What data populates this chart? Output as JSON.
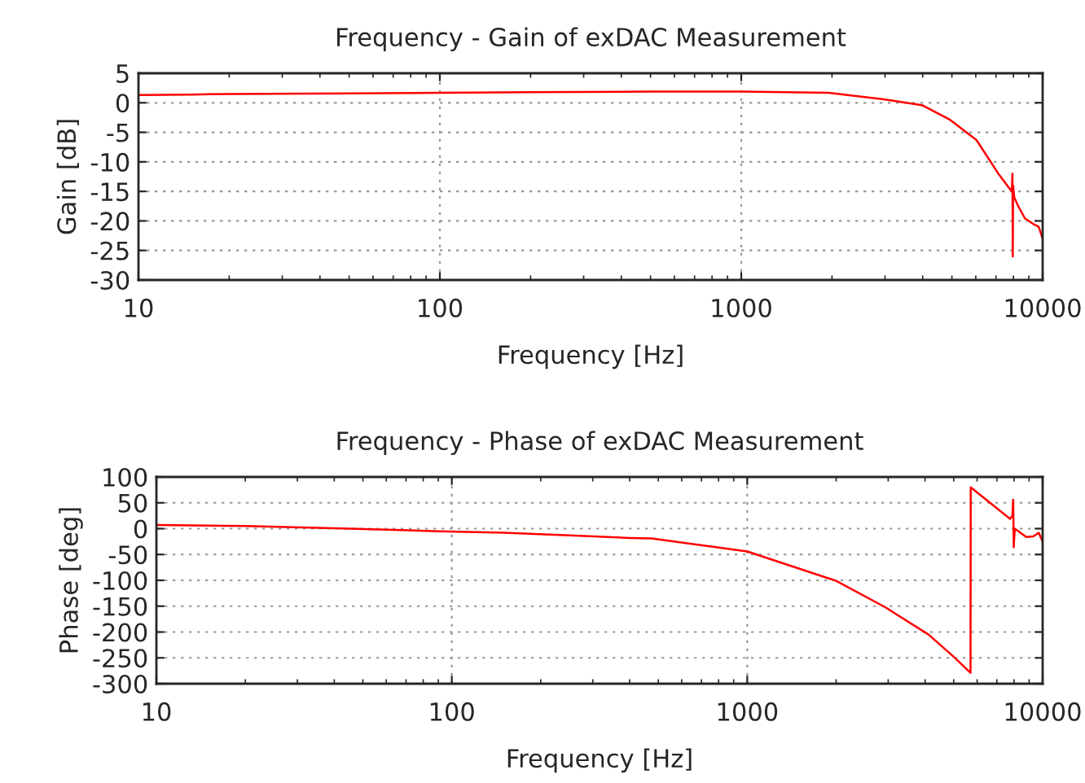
{
  "chart_data": [
    {
      "type": "line",
      "title": "Frequency - Gain of exDAC Measurement",
      "xlabel": "Frequency [Hz]",
      "ylabel": "Gain [dB]",
      "log": "x",
      "grid": true,
      "legend": false,
      "marker": "none",
      "line_style": "solid",
      "xlim": [
        10,
        10000
      ],
      "xticks": [
        10,
        100,
        1000,
        10000
      ],
      "ylim": [
        -30,
        5
      ],
      "yticks": [
        -30,
        -25,
        -20,
        -15,
        -10,
        -5,
        0,
        5
      ],
      "series": [
        {
          "color": "#ff0000",
          "x": [
            10,
            15,
            20,
            50,
            100,
            200,
            500,
            1000,
            1950,
            2970,
            3980,
            4900,
            6030,
            7110,
            7730,
            7900,
            7940,
            7960,
            7980,
            8050,
            8300,
            8740,
            9300,
            9700,
            10000
          ],
          "values": [
            1.3,
            1.4,
            1.5,
            1.6,
            1.7,
            1.8,
            1.9,
            1.9,
            1.7,
            0.6,
            -0.4,
            -2.8,
            -6.3,
            -11.9,
            -14.4,
            -15,
            -12,
            -26,
            -14,
            -16,
            -17.5,
            -19.6,
            -20.5,
            -21,
            -23
          ]
        }
      ]
    },
    {
      "type": "line",
      "title": "Frequency - Phase of exDAC Measurement",
      "xlabel": "Frequency [Hz]",
      "ylabel": "Phase [deg]",
      "log": "x",
      "grid": true,
      "legend": false,
      "marker": "none",
      "line_style": "solid",
      "xlim": [
        10,
        10000
      ],
      "xticks": [
        10,
        100,
        1000,
        10000
      ],
      "ylim": [
        -300,
        100
      ],
      "yticks": [
        -300,
        -250,
        -200,
        -150,
        -100,
        -50,
        0,
        50,
        100
      ],
      "series": [
        {
          "color": "#ff0000",
          "x": [
            10,
            20,
            45,
            90,
            150,
            250,
            400,
            474,
            1000,
            2000,
            2930,
            4110,
            4980,
            5700,
            5710,
            7760,
            7900,
            7950,
            7980,
            8050,
            8800,
            9300,
            9700,
            10000
          ],
          "values": [
            7,
            5,
            0,
            -5,
            -8,
            -13,
            -18,
            -19,
            -44,
            -101,
            -152,
            -205,
            -247,
            -279,
            80,
            19,
            25,
            56,
            -36,
            0,
            -16,
            -15,
            -8,
            -25
          ]
        }
      ]
    }
  ]
}
